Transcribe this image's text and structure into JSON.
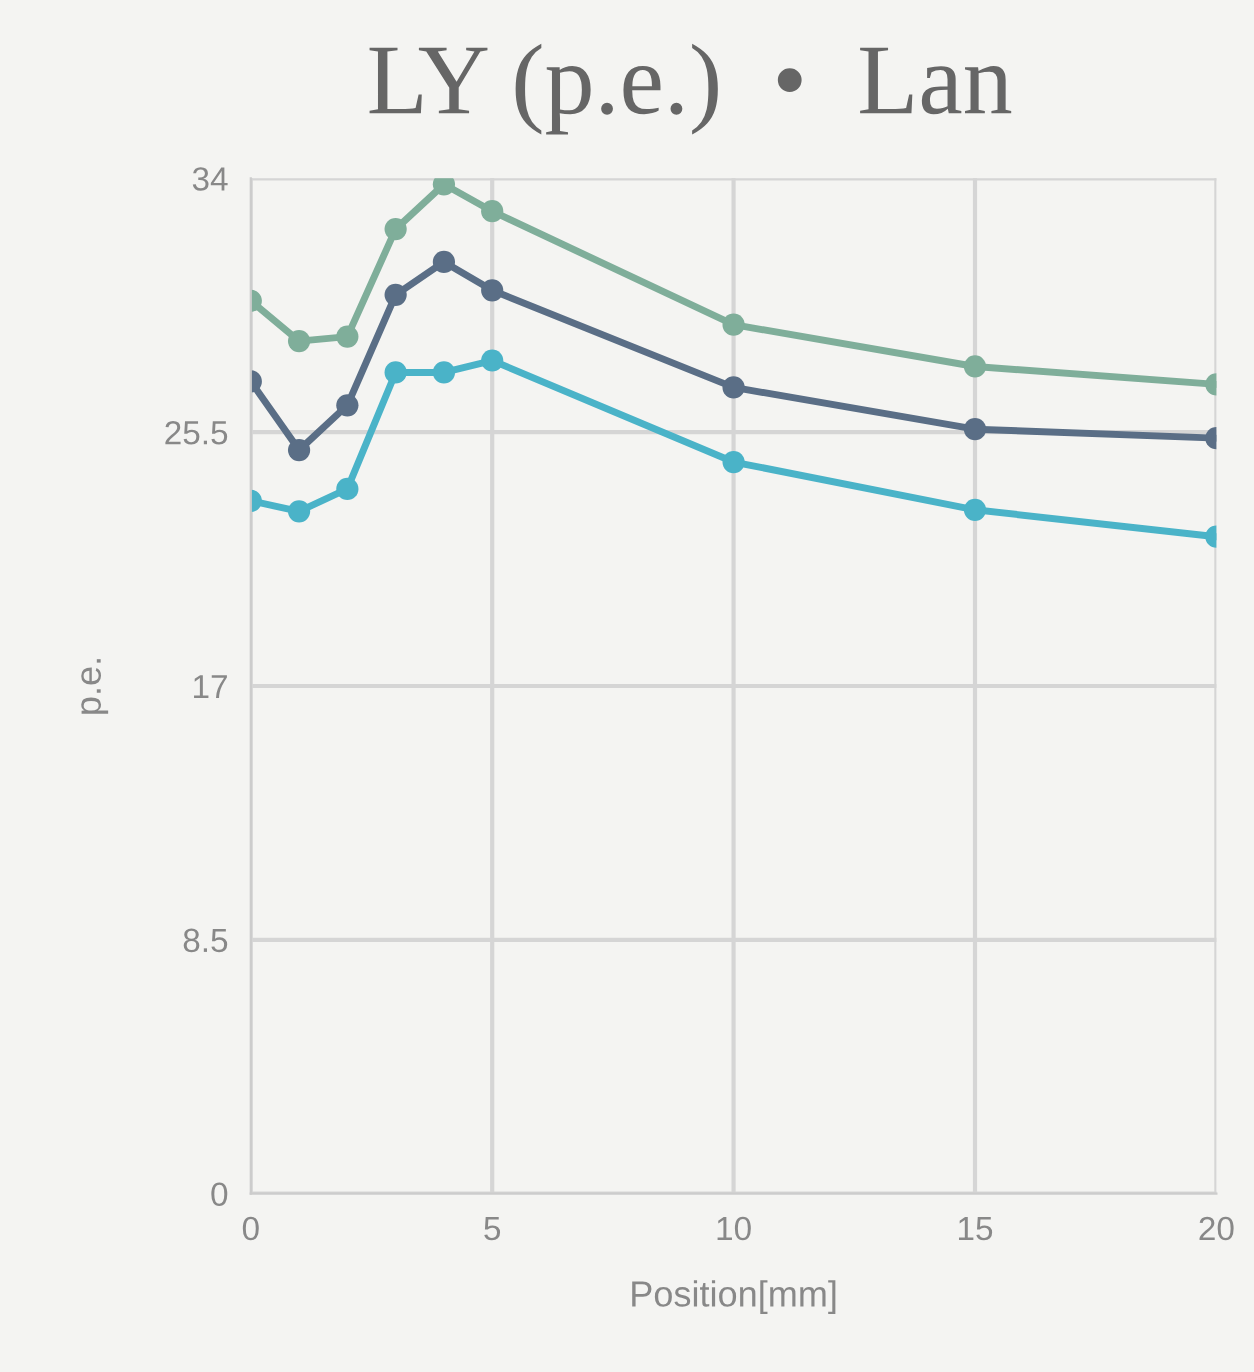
{
  "chart_data": {
    "type": "line",
    "title": "LY (p.e.)  •  Lan",
    "xlabel": "Position[mm]",
    "ylabel": "p.e.",
    "x": [
      0,
      1,
      2,
      3,
      4,
      5,
      10,
      15,
      20
    ],
    "series": [
      {
        "color": "#7fae9a",
        "values": [
          29.9,
          28.55,
          28.7,
          32.3,
          33.8,
          32.9,
          29.1,
          27.7,
          27.1
        ]
      },
      {
        "color": "#5a6e86",
        "values": [
          27.2,
          24.9,
          26.4,
          30.1,
          31.2,
          30.25,
          27.0,
          25.6,
          25.3
        ]
      },
      {
        "color": "#4ab3c8",
        "values": [
          23.2,
          22.85,
          23.6,
          27.5,
          27.5,
          27.9,
          24.5,
          22.9,
          22.0
        ]
      }
    ],
    "xlim": [
      0,
      20
    ],
    "xticks": [
      0,
      5,
      10,
      15,
      20
    ],
    "ylim": [
      0,
      34
    ],
    "yticks": [
      0,
      8.5,
      17,
      25.5,
      34
    ],
    "grid": true,
    "marker": "circle",
    "line_style": "solid"
  }
}
